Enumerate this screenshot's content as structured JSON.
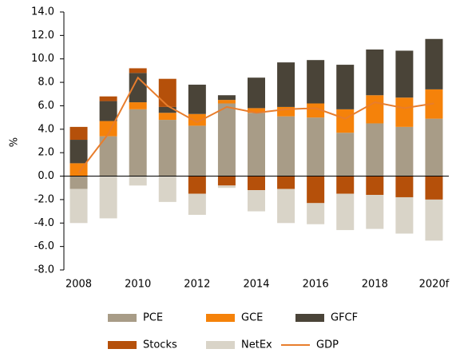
{
  "chart_data": {
    "type": "bar",
    "stacked": true,
    "y_label": "%",
    "categories": [
      "2008",
      null,
      "2010",
      null,
      "2012",
      null,
      "2014",
      null,
      "2016",
      null,
      "2018",
      null,
      "2020f"
    ],
    "ylim": [
      -8,
      14
    ],
    "yticks": [
      {
        "value": -8,
        "label": "-8.0"
      },
      {
        "value": -6,
        "label": "-6.0"
      },
      {
        "value": -4,
        "label": "-4.0"
      },
      {
        "value": -2,
        "label": "-2.0"
      },
      {
        "value": 0,
        "label": "0.0"
      },
      {
        "value": 2,
        "label": "2.0"
      },
      {
        "value": 4,
        "label": "4.0"
      },
      {
        "value": 6,
        "label": "6.0"
      },
      {
        "value": 8,
        "label": "8.0"
      },
      {
        "value": 10,
        "label": "10.0"
      },
      {
        "value": 12,
        "label": "12.0"
      },
      {
        "value": 14,
        "label": "14.0"
      }
    ],
    "series": [
      {
        "name": "PCE",
        "color": "#a89c87",
        "values": [
          -1.1,
          3.4,
          5.7,
          4.8,
          4.3,
          6.2,
          5.4,
          5.1,
          5.0,
          3.7,
          4.5,
          4.2,
          4.9
        ]
      },
      {
        "name": "GCE",
        "color": "#f5820a",
        "values": [
          1.1,
          1.3,
          0.6,
          0.6,
          1.0,
          0.3,
          0.4,
          0.8,
          1.2,
          2.0,
          2.4,
          2.5,
          2.5
        ]
      },
      {
        "name": "GFCF",
        "color": "#4a4438",
        "values": [
          2.0,
          1.7,
          2.5,
          0.5,
          2.5,
          0.4,
          2.6,
          3.8,
          3.7,
          3.8,
          3.9,
          4.0,
          4.3
        ]
      },
      {
        "name": "Stocks",
        "color": "#b5500a",
        "values": [
          1.1,
          0.4,
          0.4,
          2.4,
          -1.5,
          -0.8,
          -1.2,
          -1.1,
          -2.3,
          -1.5,
          -1.6,
          -1.8,
          -2.0
        ]
      },
      {
        "name": "NetEx",
        "color": "#d9d4c8",
        "values": [
          -2.9,
          -3.6,
          -0.8,
          -2.2,
          -1.8,
          -0.2,
          -1.8,
          -2.9,
          -1.8,
          -3.1,
          -2.9,
          -3.1,
          -3.5
        ]
      },
      {
        "name": "GDP",
        "type": "line",
        "color": "#e87d2c",
        "values": [
          0.3,
          3.6,
          8.4,
          6.0,
          4.6,
          5.9,
          5.4,
          5.7,
          5.8,
          4.9,
          6.3,
          5.8,
          6.2
        ]
      }
    ]
  }
}
